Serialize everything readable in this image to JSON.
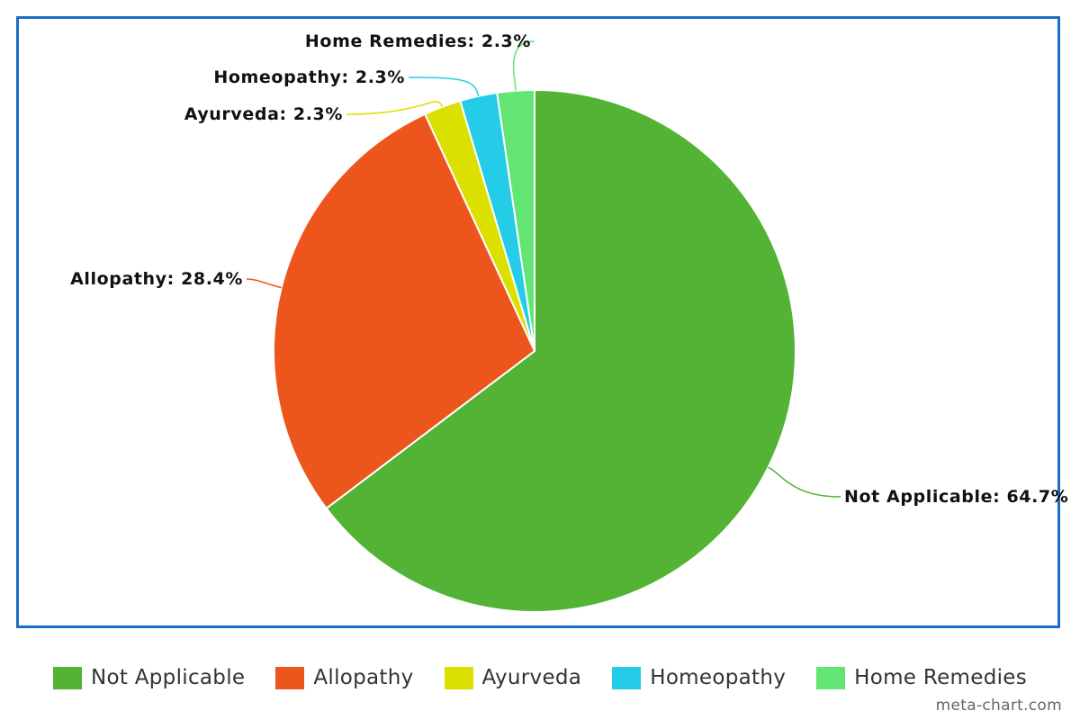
{
  "chart_data": {
    "type": "pie",
    "title": "",
    "slices": [
      {
        "name": "Not Applicable",
        "value": 64.7,
        "label": "Not Applicable: 64.7%",
        "color": "#52b334"
      },
      {
        "name": "Allopathy",
        "value": 28.4,
        "label": "Allopathy: 28.4%",
        "color": "#ec561d"
      },
      {
        "name": "Ayurveda",
        "value": 2.3,
        "label": "Ayurveda: 2.3%",
        "color": "#dbe000"
      },
      {
        "name": "Homeopathy",
        "value": 2.3,
        "label": "Homeopathy: 2.3%",
        "color": "#24cce8"
      },
      {
        "name": "Home Remedies",
        "value": 2.3,
        "label": "Home Remedies: 2.3%",
        "color": "#62e573"
      }
    ],
    "start_angle": "12 o'clock, clockwise",
    "legend_position": "bottom"
  },
  "credit": "meta-chart.com"
}
